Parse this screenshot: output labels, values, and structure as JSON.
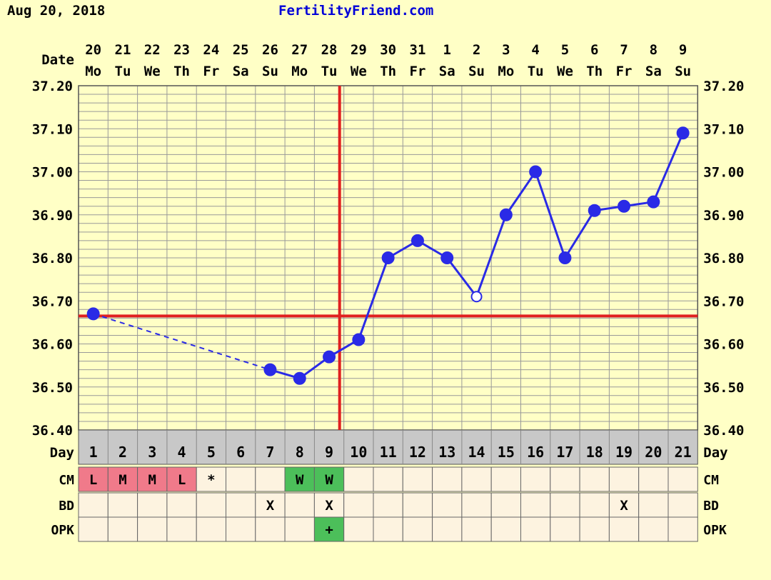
{
  "header": {
    "date": "Aug 20, 2018",
    "site": "FertilityFriend.com"
  },
  "labels": {
    "date": "Date",
    "day": "Day",
    "cm": "CM",
    "bd": "BD",
    "opk": "OPK"
  },
  "colors": {
    "background": "#ffffc6",
    "grid": "#999999",
    "line": "#2a2ae6",
    "coverline": "#e02020",
    "day_row": "#c8c8c8",
    "cell": "#fdf3e0",
    "cm_period": "#f07a8a",
    "cm_watery": "#4cbf5a",
    "opk_positive": "#4cbf5a"
  },
  "chart_data": {
    "type": "line",
    "ylim": [
      36.4,
      37.2
    ],
    "yticks": [
      "36.40",
      "36.50",
      "36.60",
      "36.70",
      "36.80",
      "36.90",
      "37.00",
      "37.10",
      "37.20"
    ],
    "dates": [
      "20",
      "21",
      "22",
      "23",
      "24",
      "25",
      "26",
      "27",
      "28",
      "29",
      "30",
      "31",
      "1",
      "2",
      "3",
      "4",
      "5",
      "6",
      "7",
      "8",
      "9"
    ],
    "weekdays": [
      "Mo",
      "Tu",
      "We",
      "Th",
      "Fr",
      "Sa",
      "Su",
      "Mo",
      "Tu",
      "We",
      "Th",
      "Fr",
      "Sa",
      "Su",
      "Mo",
      "Tu",
      "We",
      "Th",
      "Fr",
      "Sa",
      "Su"
    ],
    "cycle_days": [
      "1",
      "2",
      "3",
      "4",
      "5",
      "6",
      "7",
      "8",
      "9",
      "10",
      "11",
      "12",
      "13",
      "14",
      "15",
      "16",
      "17",
      "18",
      "19",
      "20",
      "21"
    ],
    "temps": [
      36.67,
      null,
      null,
      null,
      null,
      null,
      36.54,
      36.52,
      36.57,
      36.61,
      36.8,
      36.84,
      36.8,
      36.71,
      36.9,
      37.0,
      36.8,
      36.91,
      36.92,
      36.93,
      37.09
    ],
    "open_points": [
      13
    ],
    "dashed_segments": [
      [
        0,
        6
      ]
    ],
    "coverline": 36.665,
    "ovulation_day_index": 9,
    "cm": [
      "L",
      "M",
      "M",
      "L",
      "*",
      "",
      "",
      "W",
      "W",
      "",
      "",
      "",
      "",
      "",
      "",
      "",
      "",
      "",
      "",
      "",
      ""
    ],
    "cm_type": [
      "period",
      "period",
      "period",
      "period",
      "",
      "",
      "",
      "watery",
      "watery",
      "",
      "",
      "",
      "",
      "",
      "",
      "",
      "",
      "",
      "",
      "",
      ""
    ],
    "bd": [
      "",
      "",
      "",
      "",
      "",
      "",
      "X",
      "",
      "X",
      "",
      "",
      "",
      "",
      "",
      "",
      "",
      "",
      "",
      "X",
      "",
      ""
    ],
    "opk": [
      "",
      "",
      "",
      "",
      "",
      "",
      "",
      "",
      "+",
      "",
      "",
      "",
      "",
      "",
      "",
      "",
      "",
      "",
      "",
      "",
      ""
    ]
  }
}
